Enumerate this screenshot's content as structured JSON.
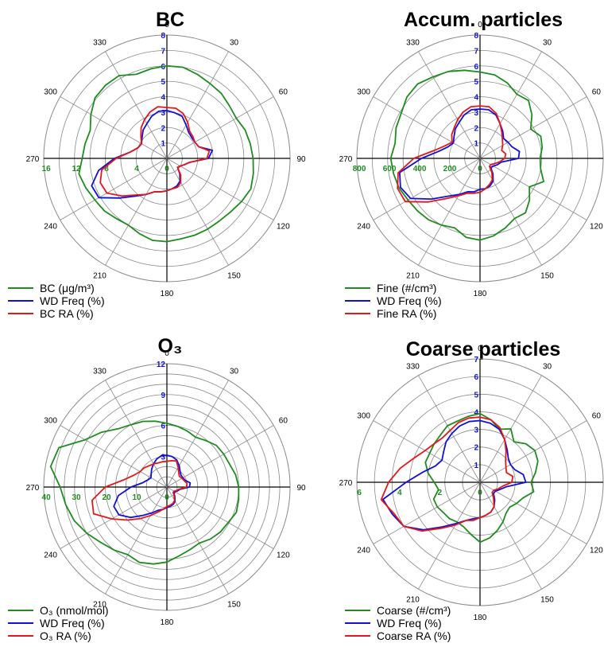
{
  "colors": {
    "main": "#1e8c1e",
    "freq": "#1010dd",
    "ra": "#e41818",
    "grid": "#8a8a8a",
    "axis": "#000000"
  },
  "directions": [
    0,
    30,
    60,
    90,
    120,
    150,
    180,
    210,
    240,
    270,
    300,
    330
  ],
  "chart_data": [
    {
      "type": "polar-line",
      "title": "BC",
      "radial_max": 8,
      "freq_ticks": [
        "1",
        "2",
        "3",
        "4",
        "5",
        "6",
        "7",
        "8"
      ],
      "conc_ticks": [
        "0",
        "4",
        "8",
        "12",
        "16"
      ],
      "legend": [
        "BC (μg/m³)",
        "WD Freq (%)",
        "BC RA (%)"
      ],
      "series": [
        {
          "name": "BC (μg/m³)",
          "r": [
            6.0,
            6.0,
            5.8,
            5.6,
            5.5,
            5.3,
            5.2,
            5.4,
            5.5,
            5.6,
            5.7,
            5.8,
            5.6,
            5.4,
            5.3,
            5.3,
            5.3,
            5.3,
            5.4,
            5.4,
            5.2,
            5.0,
            5.1,
            5.3,
            5.4,
            5.6,
            5.8,
            5.5,
            5.4,
            5.3,
            5.7,
            6.1,
            6.2,
            6.2,
            5.8,
            5.9
          ]
        },
        {
          "name": "WD Freq (%)",
          "r": [
            3.1,
            3.0,
            2.9,
            2.5,
            2.2,
            2.1,
            2.1,
            2.2,
            3.0,
            2.7,
            1.5,
            1.2,
            1.0,
            0.9,
            1.3,
            1.7,
            1.9,
            2.0,
            2.1,
            2.2,
            2.3,
            2.7,
            3.2,
            4.0,
            5.1,
            5.2,
            4.5,
            3.4,
            2.4,
            2.0,
            1.9,
            2.1,
            2.4,
            2.6,
            2.9,
            3.1
          ]
        },
        {
          "name": "BC RA (%)",
          "r": [
            3.3,
            3.3,
            3.1,
            2.7,
            2.3,
            2.2,
            2.1,
            2.2,
            2.8,
            2.6,
            1.5,
            1.2,
            1.0,
            0.9,
            1.4,
            1.8,
            2.0,
            2.0,
            2.1,
            2.2,
            2.3,
            2.7,
            3.1,
            3.8,
            4.5,
            4.6,
            4.3,
            3.3,
            2.4,
            2.0,
            1.9,
            2.2,
            2.6,
            2.9,
            3.2,
            3.4
          ]
        }
      ]
    },
    {
      "type": "polar-line",
      "title": "Accum. particles",
      "radial_max": 8,
      "freq_ticks": [
        "1",
        "2",
        "3",
        "4",
        "5",
        "6",
        "7",
        "8"
      ],
      "conc_ticks": [
        "0",
        "200",
        "400",
        "600",
        "800"
      ],
      "legend": [
        "Fine (#/cm³)",
        "WD Freq (%)",
        "Fine RA (%)"
      ],
      "series": [
        {
          "name": "Fine (#/cm³)",
          "r": [
            5.6,
            5.5,
            5.2,
            4.8,
            4.9,
            4.4,
            3.8,
            4.2,
            4.1,
            3.9,
            4.0,
            4.4,
            3.7,
            4.2,
            4.6,
            4.5,
            4.8,
            5.1,
            5.3,
            5.2,
            4.8,
            5.0,
            5.2,
            5.3,
            5.4,
            5.6,
            5.7,
            5.8,
            5.6,
            5.8,
            5.9,
            6.2,
            6.3,
            6.1,
            6.0,
            5.8
          ]
        },
        {
          "name": "WD Freq (%)",
          "r": [
            3.2,
            3.2,
            3.0,
            2.6,
            2.3,
            2.0,
            2.1,
            2.2,
            2.6,
            2.5,
            1.4,
            1.2,
            1.0,
            0.9,
            1.3,
            1.7,
            1.9,
            2.0,
            2.0,
            2.2,
            2.3,
            2.7,
            3.2,
            4.1,
            5.2,
            5.5,
            5.3,
            3.8,
            2.7,
            2.2,
            2.0,
            2.2,
            2.5,
            2.7,
            3.0,
            3.2
          ]
        },
        {
          "name": "Fine RA (%)",
          "r": [
            3.4,
            3.4,
            3.1,
            2.6,
            2.2,
            1.9,
            1.7,
            1.5,
            1.7,
            1.6,
            1.3,
            1.0,
            0.8,
            0.8,
            1.2,
            1.6,
            1.8,
            2.0,
            2.2,
            2.3,
            2.4,
            2.8,
            3.4,
            4.4,
            5.6,
            5.7,
            5.4,
            4.3,
            3.0,
            2.4,
            2.1,
            2.4,
            2.6,
            2.9,
            3.2,
            3.4
          ]
        }
      ]
    },
    {
      "type": "polar-line",
      "title": "O₃",
      "radial_max": 12,
      "freq_ticks": [
        "3",
        "6",
        "9",
        "12"
      ],
      "conc_ticks": [
        "0",
        "10",
        "20",
        "30",
        "40"
      ],
      "legend": [
        "O₃ (nmol/mol)",
        "WD Freq (%)",
        "O₃ RA (%)"
      ],
      "series": [
        {
          "name": "O₃ (nmol/mol)",
          "r": [
            6.2,
            6.0,
            5.8,
            5.6,
            5.9,
            6.3,
            6.4,
            6.5,
            6.8,
            7.0,
            7.1,
            7.2,
            6.9,
            6.8,
            6.6,
            6.3,
            6.5,
            6.8,
            7.3,
            7.6,
            7.8,
            7.6,
            8.0,
            8.4,
            9.0,
            9.6,
            10.0,
            10.4,
            11.5,
            11.2,
            9.2,
            8.3,
            7.4,
            7.0,
            6.8,
            6.5
          ]
        },
        {
          "name": "WD Freq (%)",
          "r": [
            3.1,
            3.0,
            2.8,
            2.4,
            2.0,
            1.8,
            1.8,
            1.9,
            2.3,
            2.2,
            1.3,
            1.1,
            0.9,
            0.9,
            1.2,
            1.6,
            1.8,
            1.9,
            2.0,
            2.2,
            2.4,
            2.9,
            3.6,
            4.6,
            5.4,
            5.5,
            4.8,
            3.5,
            2.4,
            2.0,
            1.8,
            2.0,
            2.3,
            2.6,
            2.9,
            3.1
          ]
        },
        {
          "name": "O₃ RA (%)",
          "r": [
            2.5,
            2.6,
            2.7,
            2.2,
            1.8,
            1.6,
            1.7,
            1.8,
            2.0,
            1.9,
            1.2,
            1.0,
            0.8,
            0.8,
            1.1,
            1.5,
            1.7,
            1.8,
            1.9,
            2.2,
            2.6,
            3.2,
            4.0,
            5.0,
            6.2,
            7.6,
            7.4,
            6.0,
            4.2,
            3.4,
            3.0,
            2.9,
            2.7,
            2.6,
            2.5,
            2.5
          ]
        }
      ]
    },
    {
      "type": "polar-line",
      "title": "Coarse particles",
      "radial_max": 7,
      "freq_ticks": [
        "1",
        "2",
        "3",
        "4",
        "5",
        "6",
        "7"
      ],
      "conc_ticks": [
        "0",
        "2",
        "4",
        "6"
      ],
      "legend": [
        "Coarse (#/cm³)",
        "WD Freq (%)",
        "Coarse RA (%)"
      ],
      "series": [
        {
          "name": "Coarse (#/cm³)",
          "r": [
            3.9,
            3.6,
            3.2,
            3.5,
            3.0,
            3.4,
            3.6,
            3.5,
            3.2,
            2.9,
            3.1,
            2.6,
            2.4,
            2.2,
            2.3,
            2.6,
            2.9,
            3.2,
            3.4,
            3.0,
            2.7,
            2.6,
            2.7,
            2.7,
            2.8,
            2.8,
            2.4,
            2.6,
            3.0,
            3.3,
            3.3,
            3.4,
            3.5,
            3.7,
            3.7,
            3.8
          ]
        },
        {
          "name": "WD Freq (%)",
          "r": [
            3.5,
            3.4,
            3.2,
            2.8,
            2.4,
            2.1,
            2.0,
            2.1,
            2.5,
            2.6,
            1.5,
            1.2,
            1.0,
            1.0,
            1.3,
            1.6,
            1.8,
            1.9,
            2.0,
            2.1,
            2.3,
            2.7,
            3.3,
            4.2,
            5.0,
            5.3,
            5.6,
            4.2,
            3.3,
            2.7,
            2.5,
            2.7,
            3.0,
            3.2,
            3.4,
            3.5
          ]
        },
        {
          "name": "Coarse RA (%)",
          "r": [
            3.7,
            3.6,
            3.3,
            2.8,
            2.3,
            1.9,
            1.7,
            1.6,
            1.9,
            1.8,
            1.3,
            1.1,
            0.9,
            0.9,
            1.2,
            1.6,
            1.8,
            1.9,
            2.0,
            2.2,
            2.3,
            2.8,
            3.4,
            4.3,
            5.0,
            5.2,
            5.7,
            5.2,
            4.6,
            4.0,
            3.6,
            3.4,
            3.3,
            3.4,
            3.6,
            3.7
          ]
        }
      ]
    }
  ]
}
